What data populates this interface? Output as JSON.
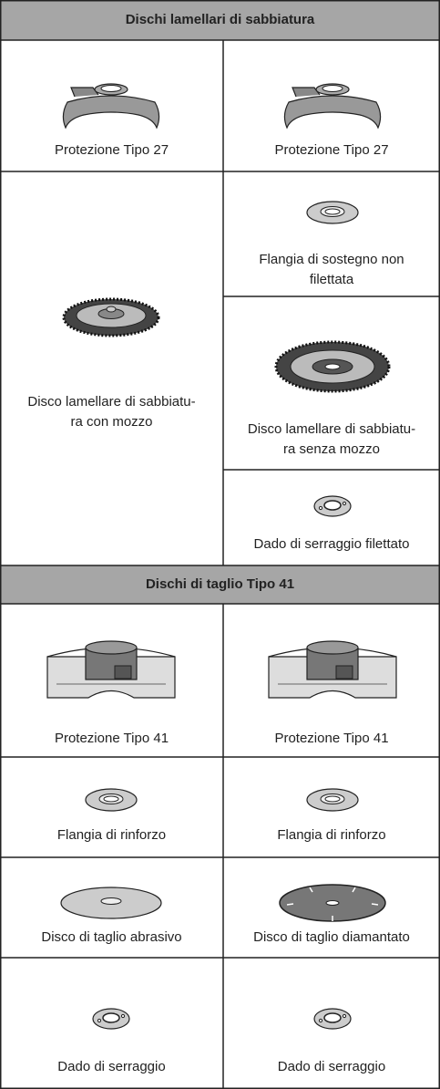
{
  "sections": [
    {
      "title": "Dischi lamellari di sabbiatura",
      "items": [
        "Protezione Tipo 27",
        "Protezione Tipo 27",
        "Disco lamellare di sabbiatu-\nra con mozzo",
        "Flangia di sostegno non\nfilettata",
        "Disco lamellare di sabbiatu-\nra senza mozzo",
        "Dado di serraggio filettato"
      ]
    },
    {
      "title": "Dischi di taglio Tipo 41",
      "items": [
        "Protezione Tipo 41",
        "Protezione Tipo 41",
        "Flangia di rinforzo",
        "Flangia di rinforzo",
        "Disco di taglio abrasivo",
        "Disco di taglio diamantato",
        "Dado di serraggio",
        "Dado di serraggio"
      ]
    }
  ]
}
